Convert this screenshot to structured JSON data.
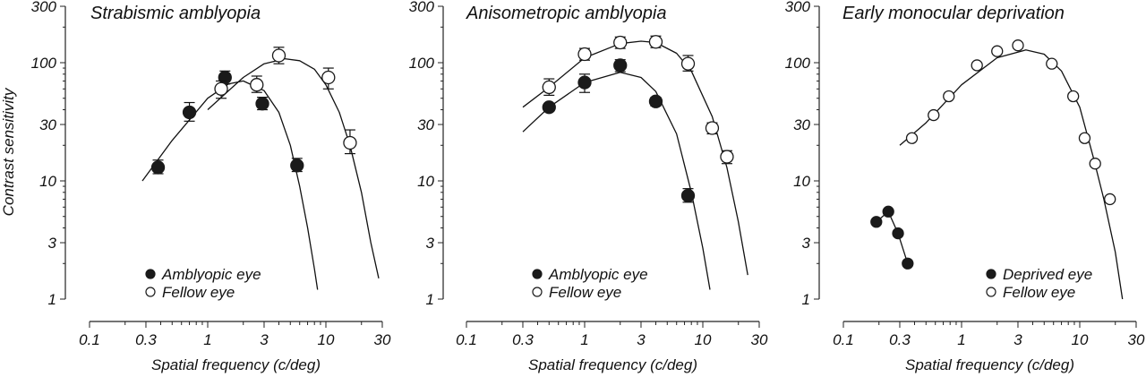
{
  "chart_data": [
    {
      "type": "line",
      "title": "Strabismic amblyopia",
      "xlabel": "Spatial frequency (c/deg)",
      "ylabel": "Contrast sensitivity",
      "xscale": "log",
      "yscale": "log",
      "xlim": [
        0.1,
        30
      ],
      "ylim": [
        1,
        300
      ],
      "xticks": [
        "0.1",
        "0.3",
        "1",
        "3",
        "10",
        "30"
      ],
      "yticks": [
        "1",
        "3",
        "10",
        "30",
        "100",
        "300"
      ],
      "legend_position": "bottom-left",
      "series": [
        {
          "name": "Amblyopic eye",
          "marker": "filled",
          "points": [
            [
              0.38,
              13
            ],
            [
              0.7,
              38
            ],
            [
              1.4,
              75
            ],
            [
              2.9,
              45
            ],
            [
              5.7,
              13.5
            ]
          ],
          "errors": [
            [
              11.5,
              15
            ],
            [
              32,
              46
            ],
            [
              66,
              85
            ],
            [
              40,
              51
            ],
            [
              12,
              15.5
            ]
          ],
          "fit": [
            [
              0.28,
              10
            ],
            [
              0.5,
              22
            ],
            [
              1,
              50
            ],
            [
              1.5,
              66
            ],
            [
              2,
              70
            ],
            [
              3,
              58
            ],
            [
              4,
              38
            ],
            [
              5,
              20
            ],
            [
              6,
              9
            ],
            [
              7,
              4
            ],
            [
              8,
              1.8
            ],
            [
              8.5,
              1.2
            ]
          ]
        },
        {
          "name": "Fellow eye",
          "marker": "open",
          "points": [
            [
              1.3,
              60
            ],
            [
              2.6,
              65
            ],
            [
              4,
              115
            ],
            [
              10.5,
              75
            ],
            [
              16,
              21
            ]
          ],
          "errors": [
            [
              50,
              70
            ],
            [
              56,
              77
            ],
            [
              98,
              135
            ],
            [
              60,
              90
            ],
            [
              17,
              27
            ]
          ],
          "fit": [
            [
              1,
              40
            ],
            [
              2,
              75
            ],
            [
              3,
              98
            ],
            [
              4.5,
              108
            ],
            [
              6,
              104
            ],
            [
              8,
              88
            ],
            [
              10,
              65
            ],
            [
              13,
              38
            ],
            [
              16,
              20
            ],
            [
              20,
              8
            ],
            [
              24,
              3
            ],
            [
              28,
              1.5
            ]
          ]
        }
      ]
    },
    {
      "type": "line",
      "title": "Anisometropic amblyopia",
      "xlabel": "Spatial frequency (c/deg)",
      "ylabel": "",
      "xscale": "log",
      "yscale": "log",
      "xlim": [
        0.1,
        30
      ],
      "ylim": [
        1,
        300
      ],
      "xticks": [
        "0.1",
        "0.3",
        "1",
        "3",
        "10",
        "30"
      ],
      "yticks": [
        "1",
        "3",
        "10",
        "30",
        "100",
        "300"
      ],
      "legend_position": "bottom-left",
      "series": [
        {
          "name": "Amblyopic eye",
          "marker": "filled",
          "points": [
            [
              0.5,
              42
            ],
            [
              1,
              68
            ],
            [
              2,
              95
            ],
            [
              4,
              47
            ],
            [
              7.5,
              7.5
            ]
          ],
          "errors": [
            [
              39,
              45
            ],
            [
              56,
              80
            ],
            [
              84,
              106
            ],
            [
              43,
              51
            ],
            [
              6.6,
              8.6
            ]
          ],
          "fit": [
            [
              0.3,
              26
            ],
            [
              0.5,
              42
            ],
            [
              1,
              68
            ],
            [
              2,
              83
            ],
            [
              3,
              75
            ],
            [
              4,
              57
            ],
            [
              6,
              25
            ],
            [
              8,
              8
            ],
            [
              10,
              2.7
            ],
            [
              11.5,
              1.2
            ]
          ]
        },
        {
          "name": "Fellow eye",
          "marker": "open",
          "points": [
            [
              0.5,
              62
            ],
            [
              1,
              118
            ],
            [
              2,
              148
            ],
            [
              4,
              150
            ],
            [
              7.5,
              98
            ],
            [
              12,
              28
            ],
            [
              16,
              16
            ]
          ],
          "errors": [
            [
              53,
              73
            ],
            [
              105,
              132
            ],
            [
              132,
              165
            ],
            [
              134,
              168
            ],
            [
              85,
              115
            ],
            [
              25,
              31
            ],
            [
              14,
              18
            ]
          ],
          "fit": [
            [
              0.3,
              42
            ],
            [
              0.5,
              62
            ],
            [
              1,
              110
            ],
            [
              2,
              145
            ],
            [
              3,
              152
            ],
            [
              4,
              148
            ],
            [
              6,
              120
            ],
            [
              8,
              85
            ],
            [
              12,
              35
            ],
            [
              16,
              13
            ],
            [
              20,
              4.5
            ],
            [
              24,
              1.6
            ]
          ]
        }
      ]
    },
    {
      "type": "line",
      "title": "Early monocular deprivation",
      "xlabel": "Spatial frequency (c/deg)",
      "ylabel": "",
      "xscale": "log",
      "yscale": "log",
      "xlim": [
        0.1,
        30
      ],
      "ylim": [
        1,
        300
      ],
      "xticks": [
        "0.1",
        "0.3",
        "1",
        "3",
        "10",
        "30"
      ],
      "yticks": [
        "1",
        "3",
        "10",
        "30",
        "100",
        "300"
      ],
      "legend_position": "bottom-right",
      "series": [
        {
          "name": "Deprived eye",
          "marker": "filled",
          "connect": true,
          "points": [
            [
              0.19,
              4.5
            ],
            [
              0.24,
              5.5
            ],
            [
              0.29,
              3.6
            ],
            [
              0.35,
              2
            ]
          ]
        },
        {
          "name": "Fellow eye",
          "marker": "open",
          "points": [
            [
              0.38,
              23
            ],
            [
              0.58,
              36
            ],
            [
              0.78,
              52
            ],
            [
              1.35,
              95
            ],
            [
              2,
              125
            ],
            [
              3,
              140
            ],
            [
              5.8,
              98
            ],
            [
              8.8,
              52
            ],
            [
              11,
              23
            ],
            [
              13.5,
              14
            ],
            [
              18,
              7
            ]
          ],
          "fit": [
            [
              0.3,
              20
            ],
            [
              0.5,
              31
            ],
            [
              1,
              65
            ],
            [
              2,
              110
            ],
            [
              3.5,
              128
            ],
            [
              5,
              118
            ],
            [
              7,
              85
            ],
            [
              10,
              42
            ],
            [
              13,
              16
            ],
            [
              16,
              7
            ],
            [
              20,
              2.5
            ],
            [
              23,
              1
            ]
          ]
        }
      ]
    }
  ]
}
